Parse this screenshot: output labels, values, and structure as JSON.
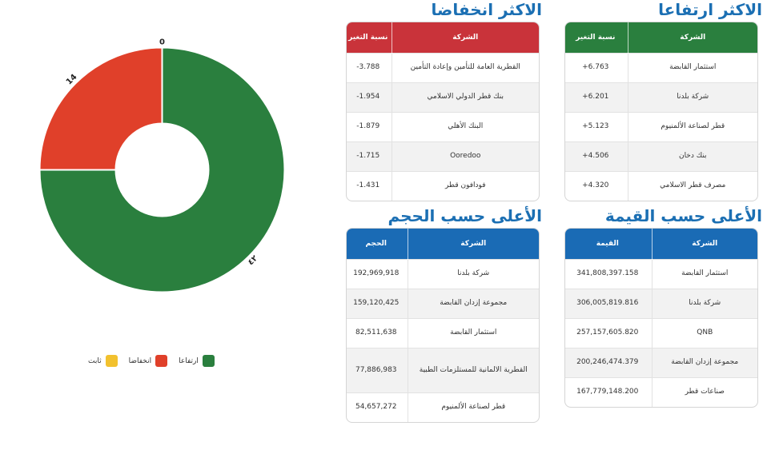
{
  "chart_data": {
    "type": "pie",
    "hole": true,
    "categories": [
      "ارتفاعا",
      "انخفاضا",
      "ثابت"
    ],
    "values": [
      42,
      14,
      0
    ],
    "data_labels": [
      "٤٢",
      "14",
      "0"
    ],
    "colors": [
      "#2a7f3e",
      "#e0402a",
      "#f2c12e"
    ],
    "legend_position": "bottom"
  },
  "gainers": {
    "title": "الاكثر ارتفاعا",
    "headers": [
      "الشركة",
      "نسبة التغير"
    ],
    "rows": [
      {
        "company": "استثمار القابضة",
        "value": "+6.763"
      },
      {
        "company": "شركة بلدنا",
        "value": "+6.201"
      },
      {
        "company": "قطر لصناعة الألمنيوم",
        "value": "+5.123"
      },
      {
        "company": "بنك دخان",
        "value": "+4.506"
      },
      {
        "company": "مصرف قطر الاسلامي",
        "value": "+4.320"
      }
    ],
    "color": "#2a7f3e"
  },
  "losers": {
    "title": "الاكثر انخفاضا",
    "headers": [
      "الشركة",
      "نسبة التغير"
    ],
    "rows": [
      {
        "company": "القطرية العامة للتأمين وإعادة التأمين",
        "value": "-3.788"
      },
      {
        "company": "بنك قطر الدولي الاسلامي",
        "value": "-1.954"
      },
      {
        "company": "البنك الأهلي",
        "value": "-1.879"
      },
      {
        "company": "Ooredoo",
        "value": "-1.715"
      },
      {
        "company": "فودافون قطر",
        "value": "-1.431"
      }
    ],
    "color": "#c9333a"
  },
  "by_value": {
    "title": "الأعلى حسب القيمة",
    "headers": [
      "الشركة",
      "القيمة"
    ],
    "rows": [
      {
        "company": "استثمار القابضة",
        "value": "341,808,397.158"
      },
      {
        "company": "شركة بلدنا",
        "value": "306,005,819.816"
      },
      {
        "company": "QNB",
        "value": "257,157,605.820"
      },
      {
        "company": "مجموعة إزدان القابضة",
        "value": "200,246,474.379"
      },
      {
        "company": "صناعات قطر",
        "value": "167,779,148.200"
      }
    ],
    "color": "#1a6bb5"
  },
  "by_volume": {
    "title": "الأعلى حسب الحجم",
    "headers": [
      "الشركة",
      "الحجم"
    ],
    "rows": [
      {
        "company": "شركة بلدنا",
        "value": "192,969,918"
      },
      {
        "company": "مجموعة إزدان القابضة",
        "value": "159,120,425"
      },
      {
        "company": "استثمار القابضة",
        "value": "82,511,638"
      },
      {
        "company": "القطرية الالمانية للمستلزمات الطبية",
        "value": "77,886,983"
      },
      {
        "company": "قطر لصناعة الألمنيوم",
        "value": "54,657,272"
      }
    ],
    "color": "#1a6bb5"
  }
}
